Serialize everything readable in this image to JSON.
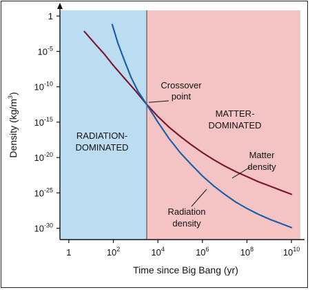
{
  "chart_data": {
    "type": "line",
    "xlabel": "Time since Big Bang (yr)",
    "ylabel_main": "Density (kg/m",
    "ylabel_sup": "3",
    "ylabel_close": ")",
    "x_scale": "log",
    "y_scale": "log",
    "xlim_exp": [
      -0.4,
      10.4
    ],
    "ylim_exp": [
      -31.6,
      0.8
    ],
    "grid": false,
    "legend": "none",
    "x_ticks": [
      {
        "base": "1",
        "exp": "",
        "value_exp": 0
      },
      {
        "base": "10",
        "exp": "2",
        "value_exp": 2
      },
      {
        "base": "10",
        "exp": "4",
        "value_exp": 4
      },
      {
        "base": "10",
        "exp": "6",
        "value_exp": 6
      },
      {
        "base": "10",
        "exp": "8",
        "value_exp": 8
      },
      {
        "base": "10",
        "exp": "10",
        "value_exp": 10
      }
    ],
    "y_ticks": [
      {
        "base": "1",
        "exp": "",
        "value_exp": 0
      },
      {
        "base": "10",
        "exp": "-5",
        "value_exp": -5
      },
      {
        "base": "10",
        "exp": "-10",
        "value_exp": -10
      },
      {
        "base": "10",
        "exp": "-15",
        "value_exp": -15
      },
      {
        "base": "10",
        "exp": "-20",
        "value_exp": -20
      },
      {
        "base": "10",
        "exp": "-25",
        "value_exp": -25
      },
      {
        "base": "10",
        "exp": "-30",
        "value_exp": -30
      }
    ],
    "regions": [
      {
        "label_lines": [
          "RADIATION-",
          "DOMINATED"
        ],
        "x_from_exp": -0.4,
        "x_to_exp": 3.5,
        "color": "#bcdcf2"
      },
      {
        "label_lines": [
          "MATTER-",
          "DOMINATED"
        ],
        "x_from_exp": 3.5,
        "x_to_exp": 10.4,
        "color": "#f4c4c4"
      }
    ],
    "series": [
      {
        "label_lines": [
          "Matter",
          "density"
        ],
        "color": "#7a1a2e",
        "points_exp": [
          [
            0.7,
            -2.2
          ],
          [
            1.2,
            -4.0
          ],
          [
            1.6,
            -5.4
          ],
          [
            2.0,
            -7.0
          ],
          [
            2.5,
            -8.8
          ],
          [
            3.0,
            -10.6
          ],
          [
            3.5,
            -12.5
          ],
          [
            4.0,
            -14.2
          ],
          [
            4.5,
            -15.7
          ],
          [
            5.0,
            -17.0
          ],
          [
            5.5,
            -18.2
          ],
          [
            6.0,
            -19.3
          ],
          [
            6.5,
            -20.3
          ],
          [
            7.0,
            -21.2
          ],
          [
            7.5,
            -22.0
          ],
          [
            8.0,
            -22.7
          ],
          [
            8.5,
            -23.4
          ],
          [
            9.0,
            -24.0
          ],
          [
            9.5,
            -24.6
          ],
          [
            10.0,
            -25.2
          ]
        ]
      },
      {
        "label_lines": [
          "Radiation",
          "density"
        ],
        "color": "#1f5fa8",
        "points_exp": [
          [
            1.95,
            -1.2
          ],
          [
            2.2,
            -3.8
          ],
          [
            2.5,
            -6.3
          ],
          [
            2.8,
            -8.7
          ],
          [
            3.1,
            -10.6
          ],
          [
            3.5,
            -12.5
          ],
          [
            4.0,
            -15.0
          ],
          [
            4.5,
            -17.3
          ],
          [
            5.0,
            -19.3
          ],
          [
            5.5,
            -21.0
          ],
          [
            6.0,
            -22.6
          ],
          [
            6.5,
            -24.0
          ],
          [
            7.0,
            -25.2
          ],
          [
            7.5,
            -26.3
          ],
          [
            8.0,
            -27.2
          ],
          [
            8.5,
            -28.0
          ],
          [
            9.0,
            -28.7
          ],
          [
            9.5,
            -29.3
          ],
          [
            10.0,
            -29.9
          ]
        ]
      }
    ],
    "annotations": [
      {
        "name": "crossover",
        "label_lines": [
          "Crossover",
          "point"
        ],
        "at_exp": [
          3.5,
          -12.5
        ]
      }
    ]
  }
}
